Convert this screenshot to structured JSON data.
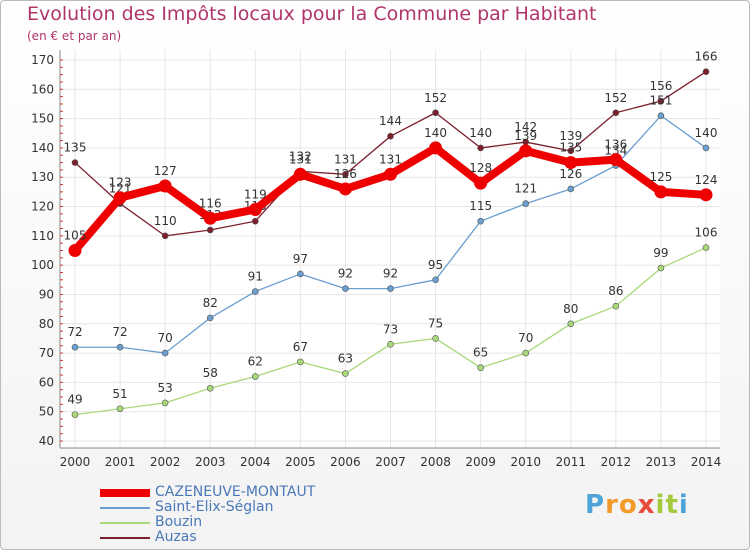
{
  "chart_data": {
    "type": "line",
    "title": "Evolution des Impôts locaux pour la Commune par Habitant",
    "subtitle": "(en € et par an)",
    "x": [
      "2000",
      "2001",
      "2002",
      "2003",
      "2004",
      "2005",
      "2006",
      "2007",
      "2008",
      "2009",
      "2010",
      "2011",
      "2012",
      "2013",
      "2014"
    ],
    "ylim": [
      40,
      170
    ],
    "yticks": [
      "40",
      "50",
      "60",
      "70",
      "80",
      "90",
      "100",
      "110",
      "120",
      "130",
      "140",
      "150",
      "160",
      "170"
    ],
    "grid": true,
    "series": [
      {
        "name": "Auzas",
        "color": "#7a1f2b",
        "values": [
          135,
          121,
          110,
          112,
          115,
          132,
          131,
          144,
          152,
          140,
          142,
          139,
          152,
          156,
          166
        ],
        "labels": [
          "135",
          "121",
          "110",
          "112",
          "115",
          "132",
          "131",
          "144",
          "152",
          "140",
          "142",
          "139",
          "152",
          "156",
          "166"
        ]
      },
      {
        "name": "Saint-Elix-Séglan",
        "color": "#6a9fcf",
        "values": [
          72,
          72,
          70,
          82,
          91,
          97,
          92,
          92,
          95,
          115,
          121,
          126,
          134,
          151,
          140
        ],
        "labels": [
          "72",
          "72",
          "70",
          "82",
          "91",
          "97",
          "92",
          "92",
          "95",
          "115",
          "121",
          "126",
          "134",
          "151",
          "140"
        ]
      },
      {
        "name": "Bouzin",
        "color": "#a8d878",
        "values": [
          49,
          51,
          53,
          58,
          62,
          67,
          63,
          73,
          75,
          65,
          70,
          80,
          86,
          99,
          106
        ],
        "labels": [
          "49",
          "51",
          "53",
          "58",
          "62",
          "67",
          "63",
          "73",
          "75",
          "65",
          "70",
          "80",
          "86",
          "99",
          "106"
        ]
      },
      {
        "name": "CAZENEUVE-MONTAUT",
        "color": "#ee0000",
        "values": [
          105,
          123,
          127,
          116,
          119,
          131,
          126,
          131,
          140,
          128,
          139,
          135,
          136,
          125,
          124
        ],
        "labels": [
          "105",
          "123",
          "127",
          "116",
          "119",
          "131",
          "126",
          "131",
          "140",
          "128",
          "139",
          "135",
          "136",
          "125",
          "124"
        ]
      }
    ],
    "legend_order": [
      "CAZENEUVE-MONTAUT",
      "Saint-Elix-Séglan",
      "Bouzin",
      "Auzas"
    ],
    "legend_position": "bottom-left"
  },
  "brand": {
    "letters": [
      "P",
      "r",
      "o",
      "x",
      "i",
      "t",
      "i"
    ],
    "colors": [
      "#4ea3d8",
      "#f29b2b",
      "#f29b2b",
      "#e84b3c",
      "#a4c93b",
      "#a4c93b",
      "#4ea3d8"
    ]
  }
}
